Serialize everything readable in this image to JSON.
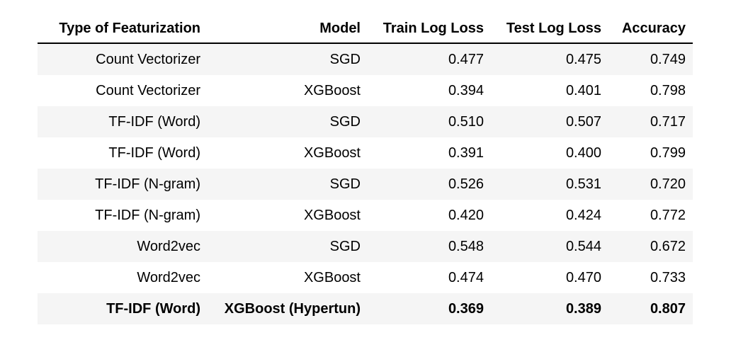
{
  "headers": [
    "Type of Featurization",
    "Model",
    "Train Log Loss",
    "Test Log Loss",
    "Accuracy"
  ],
  "rows": [
    {
      "featurization": "Count Vectorizer",
      "model": "SGD",
      "train_log_loss": "0.477",
      "test_log_loss": "0.475",
      "accuracy": "0.749"
    },
    {
      "featurization": "Count Vectorizer",
      "model": "XGBoost",
      "train_log_loss": "0.394",
      "test_log_loss": "0.401",
      "accuracy": "0.798"
    },
    {
      "featurization": "TF-IDF (Word)",
      "model": "SGD",
      "train_log_loss": "0.510",
      "test_log_loss": "0.507",
      "accuracy": "0.717"
    },
    {
      "featurization": "TF-IDF (Word)",
      "model": "XGBoost",
      "train_log_loss": "0.391",
      "test_log_loss": "0.400",
      "accuracy": "0.799"
    },
    {
      "featurization": "TF-IDF (N-gram)",
      "model": "SGD",
      "train_log_loss": "0.526",
      "test_log_loss": "0.531",
      "accuracy": "0.720"
    },
    {
      "featurization": "TF-IDF (N-gram)",
      "model": "XGBoost",
      "train_log_loss": "0.420",
      "test_log_loss": "0.424",
      "accuracy": "0.772"
    },
    {
      "featurization": "Word2vec",
      "model": "SGD",
      "train_log_loss": "0.548",
      "test_log_loss": "0.544",
      "accuracy": "0.672"
    },
    {
      "featurization": "Word2vec",
      "model": "XGBoost",
      "train_log_loss": "0.474",
      "test_log_loss": "0.470",
      "accuracy": "0.733"
    },
    {
      "featurization": "TF-IDF (Word)",
      "model": "XGBoost (Hypertun)",
      "train_log_loss": "0.369",
      "test_log_loss": "0.389",
      "accuracy": "0.807"
    }
  ],
  "emphasized_row_index": 8
}
